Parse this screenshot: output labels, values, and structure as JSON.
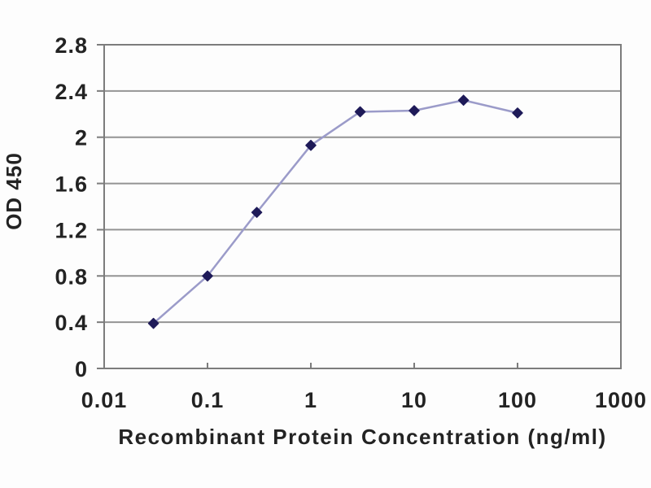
{
  "chart_data": {
    "type": "line",
    "title": "",
    "xlabel": "Recombinant Protein Concentration (ng/ml)",
    "ylabel": "OD 450",
    "x_scale": "log",
    "x": [
      0.03,
      0.1,
      0.3,
      1,
      3,
      10,
      30,
      100
    ],
    "y": [
      0.39,
      0.8,
      1.35,
      1.93,
      2.22,
      2.23,
      2.32,
      2.21
    ],
    "xlim": [
      0.01,
      1000
    ],
    "ylim": [
      0,
      2.8
    ],
    "x_ticks": [
      0.01,
      0.1,
      1,
      10,
      100,
      1000
    ],
    "x_tick_labels": [
      "0.01",
      "0.1",
      "1",
      "10",
      "100",
      "1000"
    ],
    "y_ticks": [
      0,
      0.4,
      0.8,
      1.2,
      1.6,
      2,
      2.4,
      2.8
    ],
    "y_tick_labels": [
      "0",
      "0.4",
      "0.8",
      "1.2",
      "1.6",
      "2",
      "2.4",
      "2.8"
    ],
    "grid": true,
    "legend": "none",
    "marker_shape": "diamond",
    "colors": {
      "line": "#9b9bc9",
      "marker": "#1e1a58",
      "grid": "#949494",
      "axis": "#7c7c7c",
      "text": "#232323",
      "background": "#fdfdfd"
    }
  }
}
